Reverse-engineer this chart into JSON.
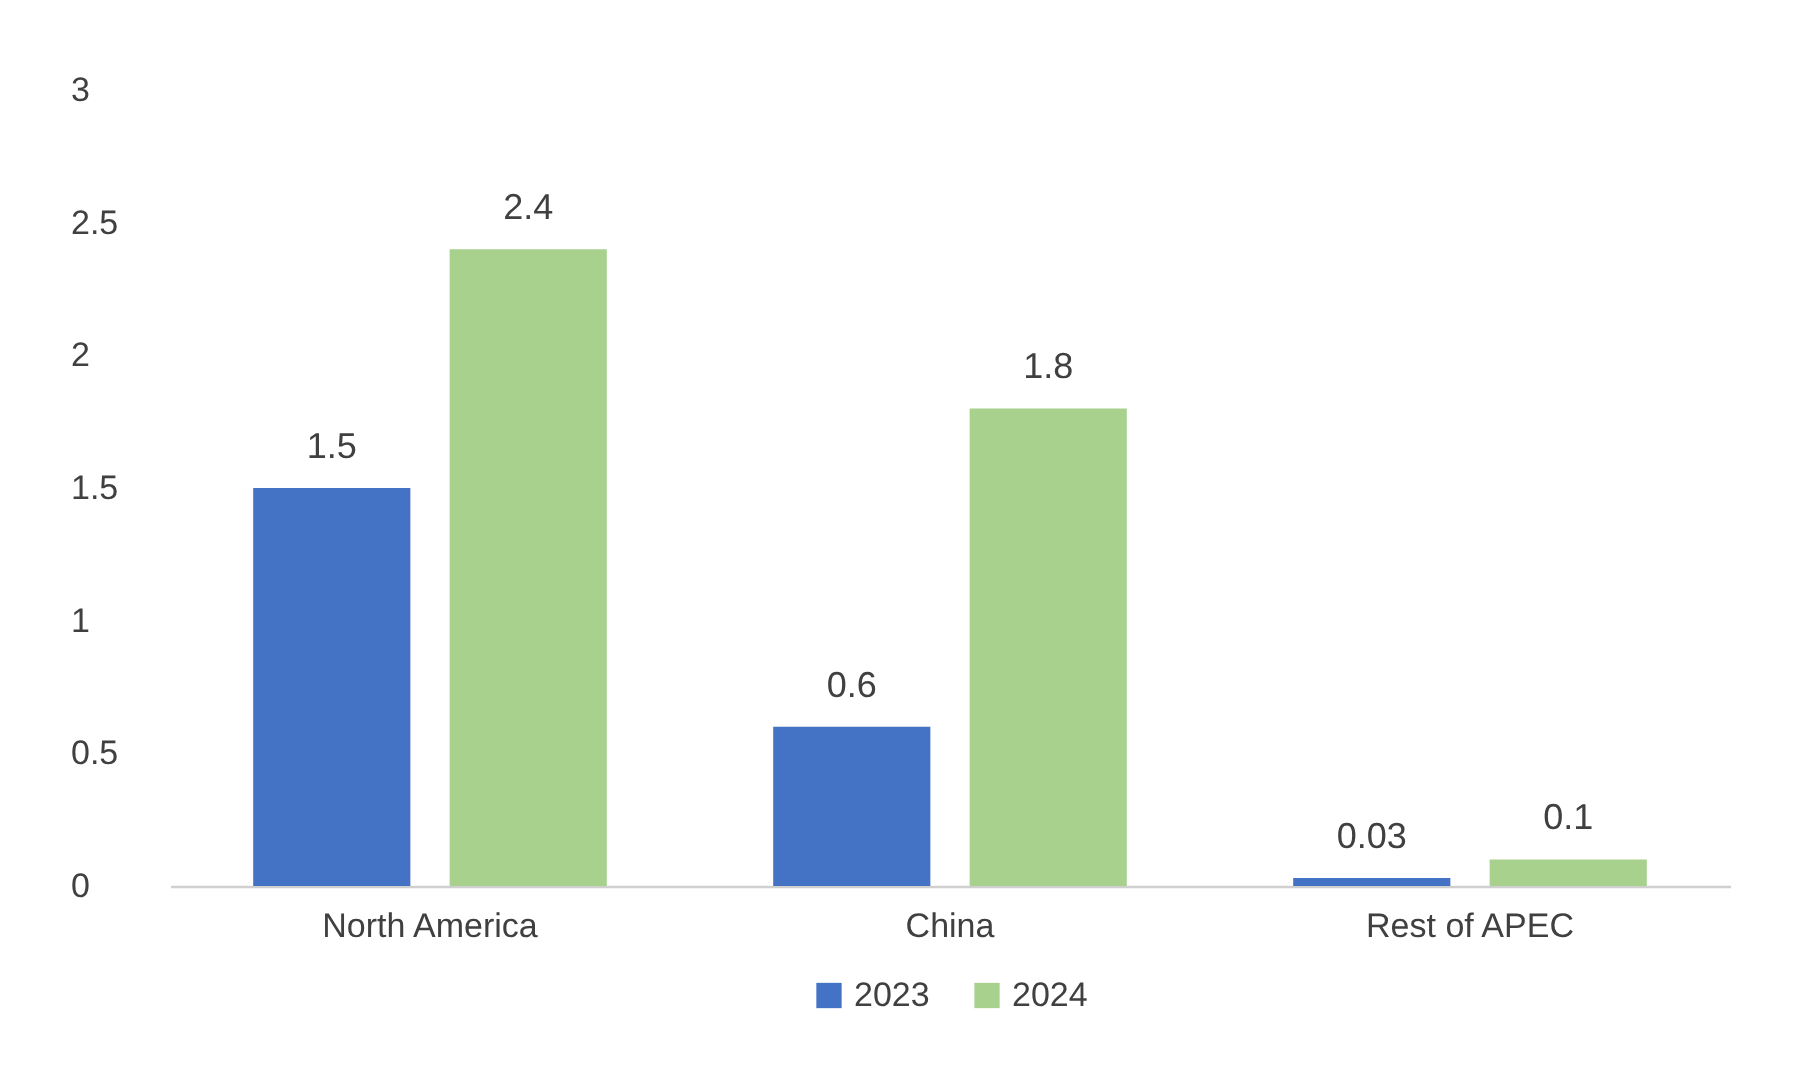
{
  "chart_data": {
    "type": "bar",
    "categories": [
      "North America",
      "China",
      "Rest of APEC"
    ],
    "series": [
      {
        "name": "2023",
        "color": "#4472c4",
        "values": [
          1.5,
          0.6,
          0.03
        ]
      },
      {
        "name": "2024",
        "color": "#a9d18e",
        "values": [
          2.4,
          1.8,
          0.1
        ]
      }
    ],
    "ylim": [
      0,
      3
    ],
    "yticks": [
      0,
      0.5,
      1,
      1.5,
      2,
      2.5,
      3
    ],
    "grid": false,
    "legend": "bottom",
    "data_labels": true
  }
}
